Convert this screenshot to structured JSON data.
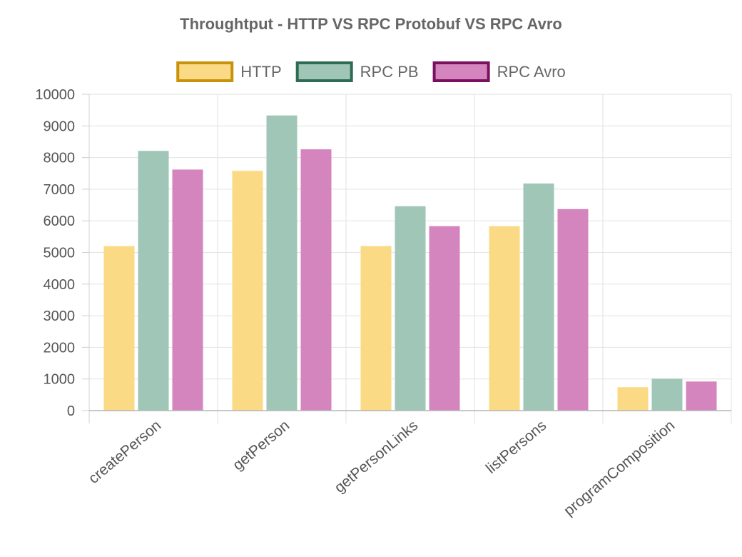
{
  "chart_data": {
    "type": "bar",
    "title": "Throughtput - HTTP VS RPC Protobuf VS RPC Avro",
    "categories": [
      "createPerson",
      "getPerson",
      "getPersonLinks",
      "listPersons",
      "programComposition"
    ],
    "series": [
      {
        "name": "HTTP",
        "values": [
          5200,
          7580,
          5200,
          5830,
          740
        ],
        "fill": "#fbda85",
        "border": "#c8930b"
      },
      {
        "name": "RPC PB",
        "values": [
          8210,
          9330,
          6460,
          7180,
          1010
        ],
        "fill": "#a0c6b8",
        "border": "#2f6a52"
      },
      {
        "name": "RPC Avro",
        "values": [
          7620,
          8260,
          5830,
          6370,
          920
        ],
        "fill": "#d585bd",
        "border": "#7a1060"
      }
    ],
    "ylim": [
      0,
      10000
    ],
    "yticks": [
      0,
      1000,
      2000,
      3000,
      4000,
      5000,
      6000,
      7000,
      8000,
      9000,
      10000
    ],
    "xlabel": "",
    "ylabel": "",
    "legend_position": "top-center",
    "grid": true
  }
}
